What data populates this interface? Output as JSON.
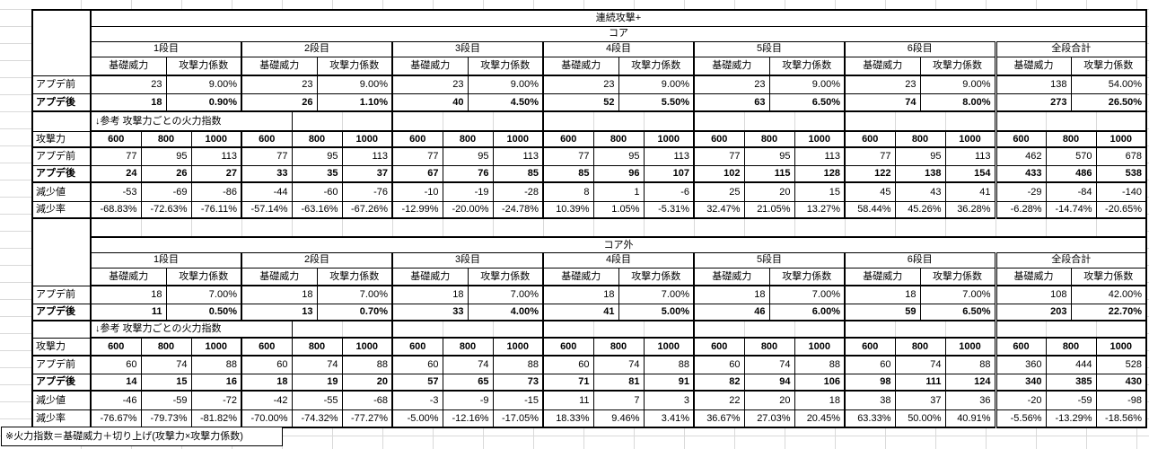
{
  "footnote": "※火力指数＝基礎威力＋切り上げ(攻撃力×攻撃力係数)",
  "colors": {
    "border": "#000000",
    "gridline": "#d9d9d9",
    "background": "#ffffff",
    "text": "#000000"
  },
  "labels": {
    "before": "アプデ前",
    "after": "アプデ後",
    "ref_note": "↓参考 攻撃力ごとの火力指数",
    "attack_power": "攻撃力",
    "base_power": "基礎威力",
    "atk_coef": "攻撃力係数",
    "total_col": "全段合計",
    "decrease_value": "減少値",
    "decrease_rate": "減少率",
    "stages": [
      "1段目",
      "2段目",
      "3段目",
      "4段目",
      "5段目",
      "6段目"
    ],
    "attack_levels": [
      "600",
      "800",
      "1000"
    ]
  },
  "sections": [
    {
      "title": "連続攻撃+",
      "subtitle": "コア",
      "base_before": [
        [
          "23",
          "9.00%"
        ],
        [
          "23",
          "9.00%"
        ],
        [
          "23",
          "9.00%"
        ],
        [
          "23",
          "9.00%"
        ],
        [
          "23",
          "9.00%"
        ],
        [
          "23",
          "9.00%"
        ],
        [
          "138",
          "54.00%"
        ]
      ],
      "base_after": [
        [
          "18",
          "0.90%"
        ],
        [
          "26",
          "1.10%"
        ],
        [
          "40",
          "4.50%"
        ],
        [
          "52",
          "5.50%"
        ],
        [
          "63",
          "6.50%"
        ],
        [
          "74",
          "8.00%"
        ],
        [
          "273",
          "26.50%"
        ]
      ],
      "fire_before": [
        [
          "77",
          "95",
          "113"
        ],
        [
          "77",
          "95",
          "113"
        ],
        [
          "77",
          "95",
          "113"
        ],
        [
          "77",
          "95",
          "113"
        ],
        [
          "77",
          "95",
          "113"
        ],
        [
          "77",
          "95",
          "113"
        ],
        [
          "462",
          "570",
          "678"
        ]
      ],
      "fire_after": [
        [
          "24",
          "26",
          "27"
        ],
        [
          "33",
          "35",
          "37"
        ],
        [
          "67",
          "76",
          "85"
        ],
        [
          "85",
          "96",
          "107"
        ],
        [
          "102",
          "115",
          "128"
        ],
        [
          "122",
          "138",
          "154"
        ],
        [
          "433",
          "486",
          "538"
        ]
      ],
      "decrease_value": [
        [
          "-53",
          "-69",
          "-86"
        ],
        [
          "-44",
          "-60",
          "-76"
        ],
        [
          "-10",
          "-19",
          "-28"
        ],
        [
          "8",
          "1",
          "-6"
        ],
        [
          "25",
          "20",
          "15"
        ],
        [
          "45",
          "43",
          "41"
        ],
        [
          "-29",
          "-84",
          "-140"
        ]
      ],
      "decrease_rate": [
        [
          "-68.83%",
          "-72.63%",
          "-76.11%"
        ],
        [
          "-57.14%",
          "-63.16%",
          "-67.26%"
        ],
        [
          "-12.99%",
          "-20.00%",
          "-24.78%"
        ],
        [
          "10.39%",
          "1.05%",
          "-5.31%"
        ],
        [
          "32.47%",
          "21.05%",
          "13.27%"
        ],
        [
          "58.44%",
          "45.26%",
          "36.28%"
        ],
        [
          "-6.28%",
          "-14.74%",
          "-20.65%"
        ]
      ]
    },
    {
      "subtitle": "コア外",
      "base_before": [
        [
          "18",
          "7.00%"
        ],
        [
          "18",
          "7.00%"
        ],
        [
          "18",
          "7.00%"
        ],
        [
          "18",
          "7.00%"
        ],
        [
          "18",
          "7.00%"
        ],
        [
          "18",
          "7.00%"
        ],
        [
          "108",
          "42.00%"
        ]
      ],
      "base_after": [
        [
          "11",
          "0.50%"
        ],
        [
          "13",
          "0.70%"
        ],
        [
          "33",
          "4.00%"
        ],
        [
          "41",
          "5.00%"
        ],
        [
          "46",
          "6.00%"
        ],
        [
          "59",
          "6.50%"
        ],
        [
          "203",
          "22.70%"
        ]
      ],
      "fire_before": [
        [
          "60",
          "74",
          "88"
        ],
        [
          "60",
          "74",
          "88"
        ],
        [
          "60",
          "74",
          "88"
        ],
        [
          "60",
          "74",
          "88"
        ],
        [
          "60",
          "74",
          "88"
        ],
        [
          "60",
          "74",
          "88"
        ],
        [
          "360",
          "444",
          "528"
        ]
      ],
      "fire_after": [
        [
          "14",
          "15",
          "16"
        ],
        [
          "18",
          "19",
          "20"
        ],
        [
          "57",
          "65",
          "73"
        ],
        [
          "71",
          "81",
          "91"
        ],
        [
          "82",
          "94",
          "106"
        ],
        [
          "98",
          "111",
          "124"
        ],
        [
          "340",
          "385",
          "430"
        ]
      ],
      "decrease_value": [
        [
          "-46",
          "-59",
          "-72"
        ],
        [
          "-42",
          "-55",
          "-68"
        ],
        [
          "-3",
          "-9",
          "-15"
        ],
        [
          "11",
          "7",
          "3"
        ],
        [
          "22",
          "20",
          "18"
        ],
        [
          "38",
          "37",
          "36"
        ],
        [
          "-20",
          "-59",
          "-98"
        ]
      ],
      "decrease_rate": [
        [
          "-76.67%",
          "-79.73%",
          "-81.82%"
        ],
        [
          "-70.00%",
          "-74.32%",
          "-77.27%"
        ],
        [
          "-5.00%",
          "-12.16%",
          "-17.05%"
        ],
        [
          "18.33%",
          "9.46%",
          "3.41%"
        ],
        [
          "36.67%",
          "27.03%",
          "20.45%"
        ],
        [
          "63.33%",
          "50.00%",
          "40.91%"
        ],
        [
          "-5.56%",
          "-13.29%",
          "-18.56%"
        ]
      ]
    }
  ]
}
